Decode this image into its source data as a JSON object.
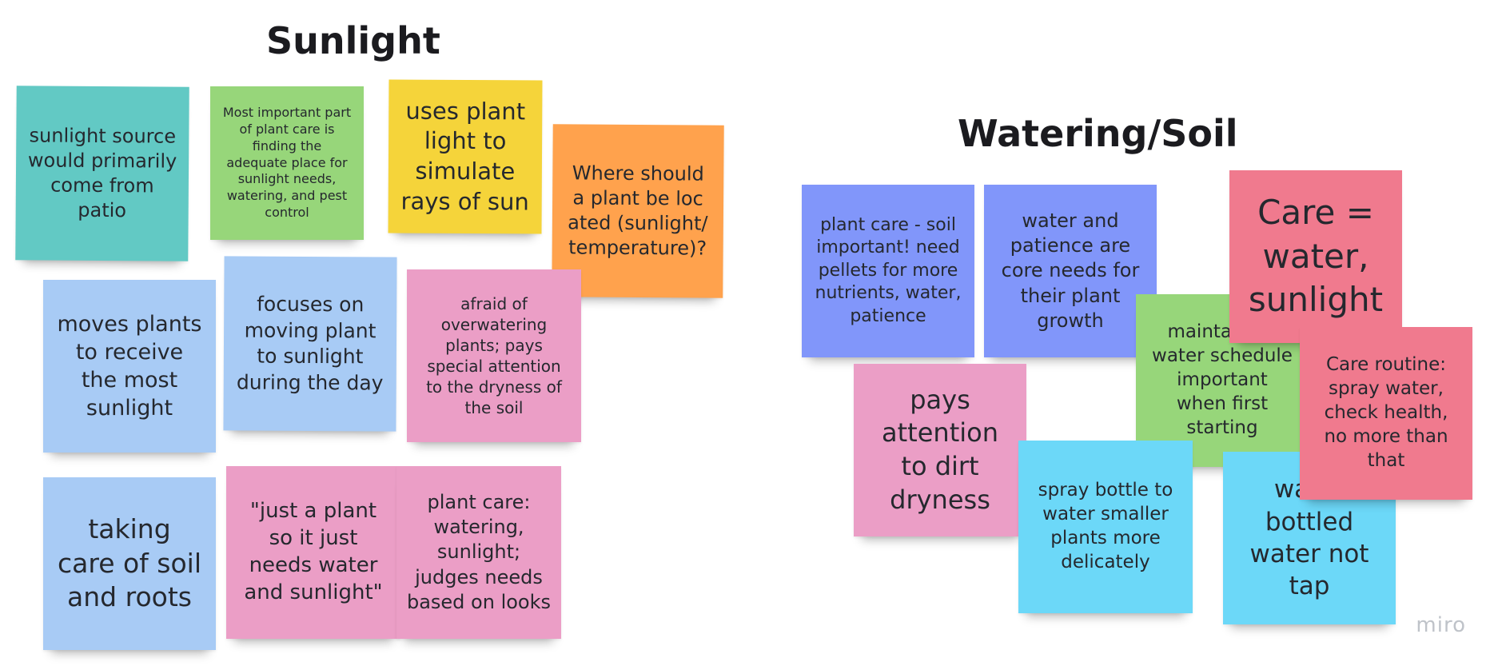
{
  "board": {
    "logo_text": "miro"
  },
  "sections": {
    "sunlight_title": "Sunlight",
    "watering_title": "Watering/Soil"
  },
  "colors": {
    "teal": "#62c9c4",
    "green": "#97d67a",
    "yellow": "#f5d43a",
    "orange": "#ffa24d",
    "light_blue": "#a8cbf5",
    "pink": "#eb9ec6",
    "indigo": "#8196fa",
    "red": "#f07a8e",
    "cyan": "#6cd8f8"
  },
  "sunlight_notes": {
    "patio": "sunlight source would primarily come from patio",
    "important": "Most important part of plant care is finding the adequate place for sunlight needs, watering, and pest control",
    "plant_light": "uses plant light to simulate rays of sun",
    "located": "Where should a plant be located (sunlight/temperature)?",
    "moves_plants": "moves plants to receive the most sunlight",
    "focuses": "focuses on moving plant to sunlight during the day",
    "afraid": "afraid of overwatering plants; pays special attention to the dryness of the soil",
    "soil_roots": "taking care of soil and roots",
    "just_plant": "\"just a plant so it just needs water and sunlight\"",
    "plant_care": "plant care: watering, sunlight; judges needs based on looks"
  },
  "watering_notes": {
    "soil_important": "plant care - soil important! need pellets for more nutrients, water, patience",
    "patience": "water and patience are core needs for their plant growth",
    "care_equals": "Care = water, sunlight",
    "maintaining": "maintaining water schedule important when first starting",
    "routine": "Care routine: spray water, check health, no more than that",
    "dirt": "pays attention to dirt dryness",
    "spray": "spray bottle to water smaller plants more delicately",
    "bottled": "water bottled water not tap"
  }
}
